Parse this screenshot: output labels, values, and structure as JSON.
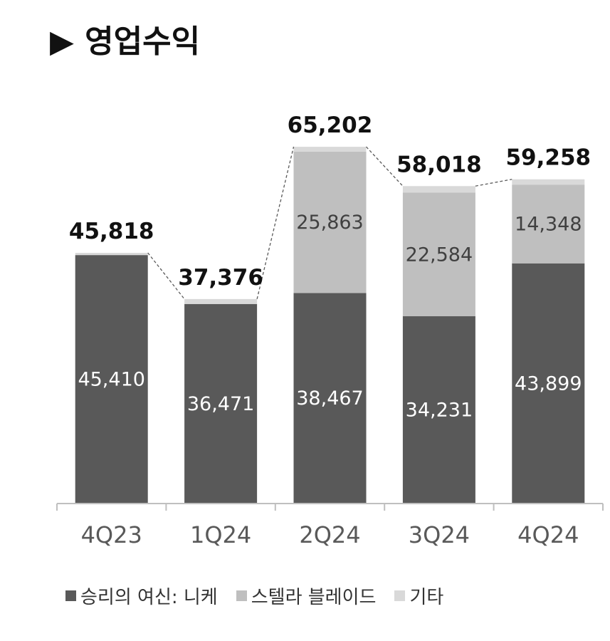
{
  "title": "▶ 영업수익",
  "colors": {
    "nike": "#595959",
    "stellar": "#bfbfbf",
    "other": "#d9d9d9",
    "axis": "#bfbfbf",
    "text_dark": "#111111",
    "text_light": "#ffffff",
    "tick_text": "#595959"
  },
  "chart_data": {
    "type": "bar",
    "stacked": true,
    "categories": [
      "4Q23",
      "1Q24",
      "2Q24",
      "3Q24",
      "4Q24"
    ],
    "series": [
      {
        "name": "승리의 여신: 니케",
        "values": [
          45410,
          36471,
          38467,
          34231,
          43899
        ]
      },
      {
        "name": "스텔라 블레이드",
        "values": [
          0,
          0,
          25863,
          22584,
          14348
        ]
      },
      {
        "name": "기타",
        "values": [
          408,
          905,
          872,
          1203,
          1011
        ]
      }
    ],
    "totals": [
      45818,
      37376,
      65202,
      58018,
      59258
    ],
    "total_labels": [
      "45,818",
      "37,376",
      "65,202",
      "58,018",
      "59,258"
    ],
    "nike_labels": [
      "45,410",
      "36,471",
      "38,467",
      "34,231",
      "43,899"
    ],
    "stellar_labels": [
      "",
      "",
      "25,863",
      "22,584",
      "14,348"
    ],
    "ylim": [
      0,
      70000
    ],
    "grid": false,
    "total_connector": "dashed",
    "legend_position": "bottom"
  }
}
